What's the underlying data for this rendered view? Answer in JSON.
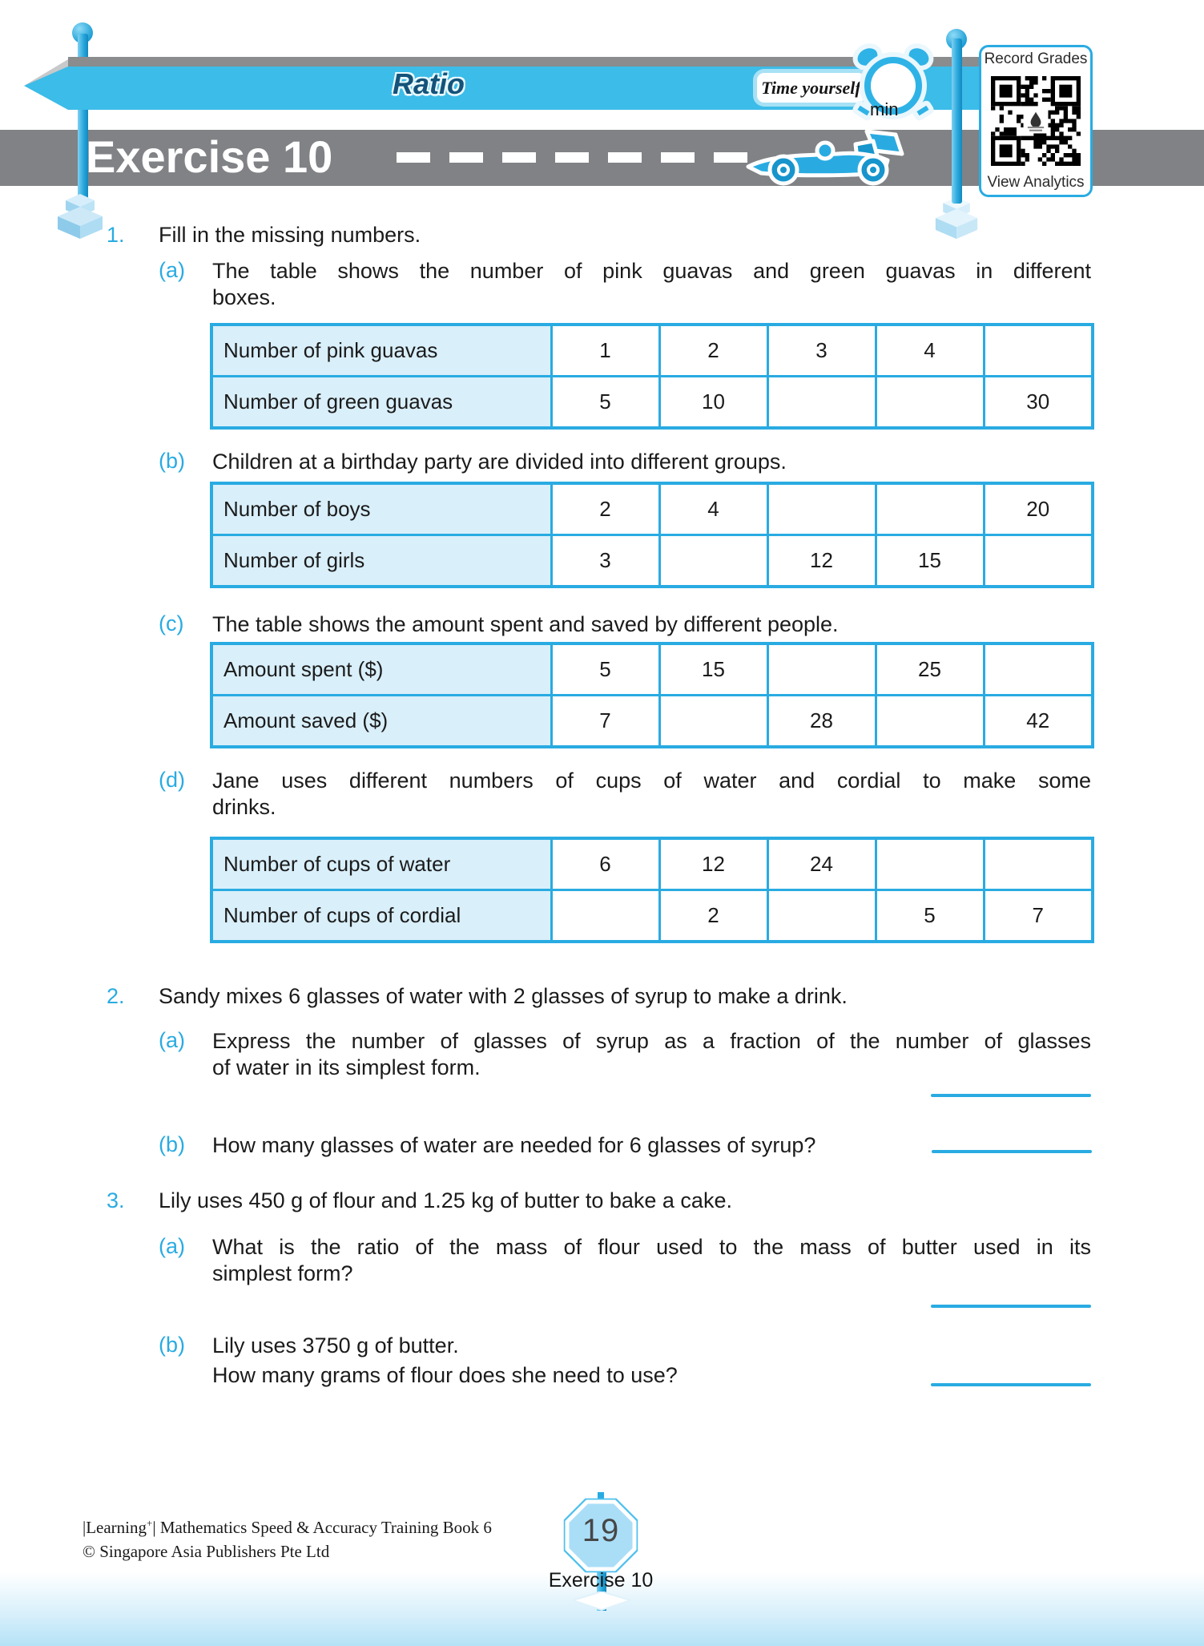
{
  "header": {
    "topic_label": "Ratio",
    "time_yourself_label": "Time yourself",
    "minutes_unit": "min",
    "qr_top_label": "Record Grades",
    "qr_bottom_label": "View Analytics",
    "band_title": "Exercise 10"
  },
  "questions": {
    "q1": {
      "number": "1.",
      "text": "Fill in the missing numbers.",
      "parts": {
        "a": {
          "label": "(a)",
          "line1": "The table shows the number of pink guavas and green guavas in different",
          "line2": "boxes.",
          "table": {
            "rows": [
              {
                "label": "Number of pink guavas",
                "cells": [
                  "1",
                  "2",
                  "3",
                  "4",
                  ""
                ]
              },
              {
                "label": "Number of green guavas",
                "cells": [
                  "5",
                  "10",
                  "",
                  "",
                  "30"
                ]
              }
            ]
          }
        },
        "b": {
          "label": "(b)",
          "line1": "Children at a birthday party are divided into different groups.",
          "table": {
            "rows": [
              {
                "label": "Number of boys",
                "cells": [
                  "2",
                  "4",
                  "",
                  "",
                  "20"
                ]
              },
              {
                "label": "Number of girls",
                "cells": [
                  "3",
                  "",
                  "12",
                  "15",
                  ""
                ]
              }
            ]
          }
        },
        "c": {
          "label": "(c)",
          "line1": "The table shows the amount spent and saved by different people.",
          "table": {
            "rows": [
              {
                "label": "Amount spent ($)",
                "cells": [
                  "5",
                  "15",
                  "",
                  "25",
                  ""
                ]
              },
              {
                "label": "Amount saved ($)",
                "cells": [
                  "7",
                  "",
                  "28",
                  "",
                  "42"
                ]
              }
            ]
          }
        },
        "d": {
          "label": "(d)",
          "line1": "Jane uses different numbers of cups of water and cordial to make some",
          "line2": "drinks.",
          "table": {
            "rows": [
              {
                "label": "Number of cups of water",
                "cells": [
                  "6",
                  "12",
                  "24",
                  "",
                  ""
                ]
              },
              {
                "label": "Number of cups of cordial",
                "cells": [
                  "",
                  "2",
                  "",
                  "5",
                  "7"
                ]
              }
            ]
          }
        }
      }
    },
    "q2": {
      "number": "2.",
      "text": "Sandy mixes 6 glasses of water with 2 glasses of syrup to make a drink.",
      "parts": {
        "a": {
          "label": "(a)",
          "line1": "Express the number of glasses of syrup as a fraction of the number of glasses",
          "line2": "of water in its simplest form."
        },
        "b": {
          "label": "(b)",
          "line1": "How many glasses of water are needed for 6 glasses of syrup?"
        }
      }
    },
    "q3": {
      "number": "3.",
      "text": "Lily uses 450 g of flour and 1.25 kg of butter to bake a cake.",
      "parts": {
        "a": {
          "label": "(a)",
          "line1": "What is the ratio of the mass of flour used to the mass of butter used in its",
          "line2": "simplest form?"
        },
        "b": {
          "label": "(b)",
          "line1": "Lily uses 3750 g of butter.",
          "line2": "How many grams of flour does she need to use?"
        }
      }
    }
  },
  "footer": {
    "book_series": "|Learning",
    "book_series_sup": "+",
    "book_series_rest": "| Mathematics Speed & Accuracy Training Book 6",
    "copyright": "© Singapore Asia Publishers Pte Ltd",
    "page_number": "19",
    "page_exercise_label": "Exercise 10"
  },
  "colors": {
    "accent_blue": "#29abe2",
    "banner_blue": "#3cbce8",
    "band_gray": "#808285",
    "table_label_fill": "#d9effa",
    "ratio_text_navy": "#14537a"
  }
}
